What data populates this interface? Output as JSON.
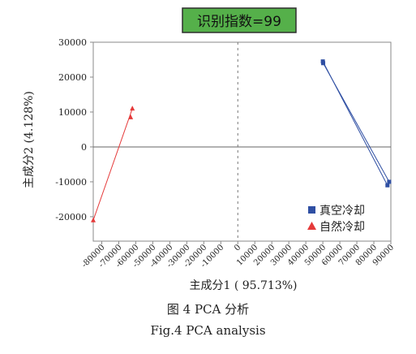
{
  "chart_data": {
    "type": "scatter",
    "badge": "识别指数=99",
    "xlabel": "主成分1 ( 95.713%)",
    "ylabel": "主成分2 (4.128%)",
    "xlim": [
      -85000,
      90000
    ],
    "ylim": [
      -27000,
      30000
    ],
    "x_ticks": [
      -80000,
      -70000,
      -60000,
      -50000,
      -40000,
      -30000,
      -20000,
      -10000,
      0,
      10000,
      20000,
      30000,
      40000,
      50000,
      60000,
      70000,
      80000,
      90000
    ],
    "y_ticks": [
      30000,
      20000,
      10000,
      0,
      -10000,
      -20000
    ],
    "x_tick_labels": [
      "-80000",
      "-70000",
      "-60000",
      "-50000",
      "-40000",
      "-30000",
      "-20000",
      "-10000",
      "0",
      "10000",
      "20000",
      "30000",
      "40000",
      "50000",
      "60000",
      "70000",
      "80000",
      "90000"
    ],
    "y_tick_labels": [
      "30000",
      "20000",
      "10000",
      "0",
      "-10000",
      "-20000"
    ],
    "legend_position": "bottom-right",
    "series": [
      {
        "name": "真空冷却",
        "marker": "square",
        "color": "#2f4fa3",
        "lines": [
          [
            [
              50000,
              24500
            ],
            [
              88000,
              -11000
            ]
          ],
          [
            [
              50200,
              24000
            ],
            [
              89000,
              -10000
            ]
          ]
        ],
        "points": [
          [
            50000,
            24500
          ],
          [
            50200,
            24000
          ],
          [
            88000,
            -11000
          ],
          [
            89000,
            -10000
          ]
        ]
      },
      {
        "name": "自然冷却",
        "marker": "triangle",
        "color": "#e53a3a",
        "lines": [
          [
            [
              -85000,
              -21000
            ],
            [
              -62000,
              11000
            ]
          ]
        ],
        "points": [
          [
            -85000,
            -21000
          ],
          [
            -62000,
            11000
          ],
          [
            -63000,
            8500
          ]
        ]
      }
    ]
  },
  "captions": {
    "zh": "图 4    PCA 分析",
    "en": "Fig.4    PCA analysis"
  },
  "colors": {
    "badge_bg": "#55b04a",
    "badge_border": "#2e2e2e",
    "axis": "#555555",
    "frame": "#8a8a8a"
  }
}
